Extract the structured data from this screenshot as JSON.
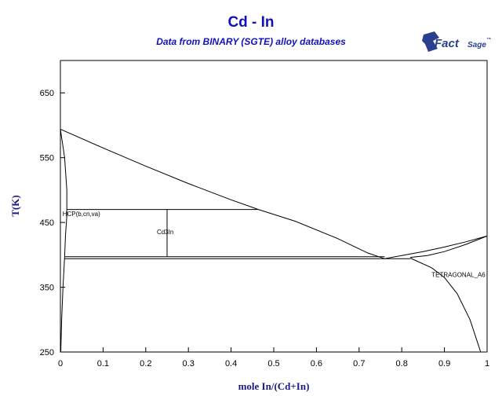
{
  "colors": {
    "title": "#1010c0",
    "axis_label": "#1a1a80",
    "logo": "#2a3f8f",
    "lines": "#000000"
  },
  "logo": {
    "brand_main": "Fact",
    "brand_second": "Sage",
    "brand_mark": "™",
    "icon": "factsage-logo-icon"
  },
  "chart_data": {
    "type": "line",
    "title": "Cd - In",
    "subtitle": "Data from BINARY (SGTE) alloy databases",
    "xlabel": "mole In/(Cd+In)",
    "ylabel": "T(K)",
    "xlim": [
      0,
      1
    ],
    "ylim": [
      250,
      700
    ],
    "xticks": [
      0,
      0.1,
      0.2,
      0.3,
      0.4,
      0.5,
      0.6,
      0.7,
      0.8,
      0.9,
      1
    ],
    "xtick_labels": [
      "0",
      "0.1",
      "0.2",
      "0.3",
      "0.4",
      "0.5",
      "0.6",
      "0.7",
      "0.8",
      "0.9",
      "1"
    ],
    "yticks": [
      250,
      350,
      450,
      550,
      650
    ],
    "ytick_labels": [
      "250",
      "350",
      "450",
      "550",
      "650"
    ],
    "grid": false,
    "phase_labels": [
      {
        "text": "HCP(b,cn,va)",
        "x": 0.005,
        "y": 460
      },
      {
        "text": "Cd3In",
        "x": 0.226,
        "y": 432
      },
      {
        "text": "TETRAGONAL_A6",
        "x": 0.87,
        "y": 366
      }
    ],
    "series": [
      {
        "points": [
          [
            0,
            594
          ],
          [
            0.1,
            565
          ],
          [
            0.2,
            537
          ],
          [
            0.3,
            510
          ],
          [
            0.4,
            485
          ],
          [
            0.464,
            470
          ],
          [
            0.55,
            452
          ],
          [
            0.65,
            425
          ],
          [
            0.72,
            403
          ],
          [
            0.76,
            394
          ]
        ]
      },
      {
        "points": [
          [
            0.76,
            394
          ],
          [
            0.8,
            399
          ],
          [
            0.85,
            405
          ],
          [
            0.9,
            412
          ],
          [
            0.95,
            420
          ],
          [
            1,
            429
          ]
        ]
      },
      {
        "points": [
          [
            0.82,
            396
          ],
          [
            0.86,
            399
          ],
          [
            0.9,
            405
          ],
          [
            0.95,
            416
          ],
          [
            1,
            429
          ]
        ]
      },
      {
        "points": [
          [
            0.82,
            395
          ],
          [
            0.87,
            380
          ],
          [
            0.9,
            365
          ],
          [
            0.93,
            340
          ],
          [
            0.96,
            300
          ],
          [
            0.98,
            260
          ],
          [
            0.985,
            250
          ]
        ]
      },
      {
        "points": [
          [
            0,
            594
          ],
          [
            0.01,
            550
          ],
          [
            0.015,
            500
          ],
          [
            0.015,
            460
          ],
          [
            0.012,
            430
          ],
          [
            0.01,
            397
          ]
        ]
      },
      {
        "points": [
          [
            0.01,
            397
          ],
          [
            0.006,
            350
          ],
          [
            0.003,
            300
          ],
          [
            0.001,
            250
          ]
        ]
      },
      {
        "points": [
          [
            0.015,
            470
          ],
          [
            0.464,
            470
          ]
        ]
      },
      {
        "points": [
          [
            0.25,
            470
          ],
          [
            0.25,
            397
          ]
        ]
      },
      {
        "points": [
          [
            0.01,
            397
          ],
          [
            0.76,
            397
          ]
        ]
      },
      {
        "points": [
          [
            0.01,
            394
          ],
          [
            0.82,
            394
          ]
        ]
      }
    ]
  }
}
